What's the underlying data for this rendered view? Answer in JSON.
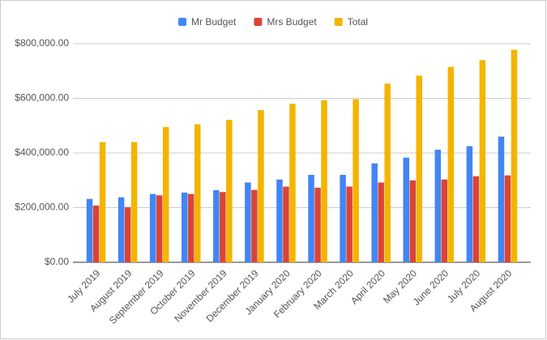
{
  "chart_data": {
    "type": "bar",
    "categories": [
      "July 2019",
      "August 2019",
      "September 2019",
      "October 2019",
      "November 2019",
      "December 2019",
      "January 2020",
      "February 2020",
      "March 2020",
      "April 2020",
      "May 2020",
      "June 2020",
      "July 2020",
      "August 2020"
    ],
    "series": [
      {
        "name": "Mr Budget",
        "color": "#4285f4",
        "values": [
          232000,
          238000,
          250000,
          255000,
          264000,
          292000,
          303000,
          320000,
          320000,
          362000,
          383000,
          412000,
          425000,
          460000
        ]
      },
      {
        "name": "Mrs Budget",
        "color": "#db4437",
        "values": [
          208000,
          202000,
          245000,
          250000,
          257000,
          265000,
          277000,
          273000,
          277000,
          292000,
          300000,
          303000,
          315000,
          318000
        ]
      },
      {
        "name": "Total",
        "color": "#f4b400",
        "values": [
          440000,
          440000,
          495000,
          505000,
          521000,
          557000,
          580000,
          593000,
          597000,
          654000,
          683000,
          715000,
          740000,
          778000
        ]
      }
    ],
    "ylim": [
      0,
      800000
    ],
    "yticks": [
      {
        "value": 0,
        "label": "$0.00"
      },
      {
        "value": 200000,
        "label": "$200,000.00"
      },
      {
        "value": 400000,
        "label": "$400,000.00"
      },
      {
        "value": 600000,
        "label": "$600,000.00"
      },
      {
        "value": 800000,
        "label": "$800,000.00"
      }
    ],
    "grid": true,
    "legend": "top"
  }
}
